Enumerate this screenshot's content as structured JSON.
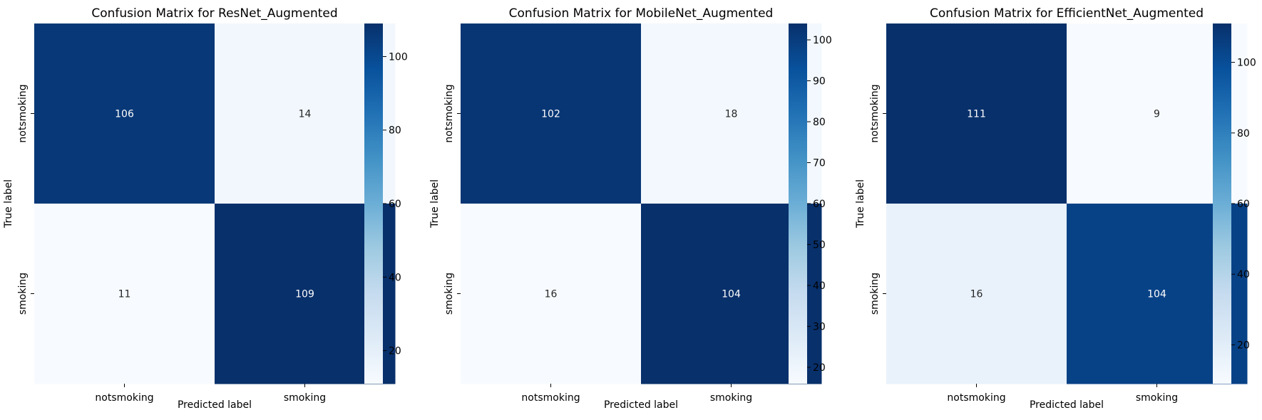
{
  "chart_data": [
    {
      "type": "heatmap",
      "title": "Confusion Matrix for ResNet_Augmented",
      "xlabel": "Predicted label",
      "ylabel": "True label",
      "x_categories": [
        "notsmoking",
        "smoking"
      ],
      "y_categories": [
        "notsmoking",
        "smoking"
      ],
      "values": [
        [
          106,
          14
        ],
        [
          11,
          109
        ]
      ],
      "colormap": "Blues",
      "colorbar": {
        "min": 11,
        "max": 109,
        "ticks": [
          "20",
          "40",
          "60",
          "80",
          "100"
        ]
      }
    },
    {
      "type": "heatmap",
      "title": "Confusion Matrix for MobileNet_Augmented",
      "xlabel": "Predicted label",
      "ylabel": "True label",
      "x_categories": [
        "notsmoking",
        "smoking"
      ],
      "y_categories": [
        "notsmoking",
        "smoking"
      ],
      "values": [
        [
          102,
          18
        ],
        [
          16,
          104
        ]
      ],
      "colormap": "Blues",
      "colorbar": {
        "min": 16,
        "max": 104,
        "ticks": [
          "20",
          "30",
          "40",
          "50",
          "60",
          "70",
          "80",
          "90",
          "100"
        ]
      }
    },
    {
      "type": "heatmap",
      "title": "Confusion Matrix for EfficientNet_Augmented",
      "xlabel": "Predicted label",
      "ylabel": "True label",
      "x_categories": [
        "notsmoking",
        "smoking"
      ],
      "y_categories": [
        "notsmoking",
        "smoking"
      ],
      "values": [
        [
          111,
          9
        ],
        [
          16,
          104
        ]
      ],
      "colormap": "Blues",
      "colorbar": {
        "min": 9,
        "max": 111,
        "ticks": [
          "20",
          "40",
          "60",
          "80",
          "100"
        ]
      }
    }
  ]
}
